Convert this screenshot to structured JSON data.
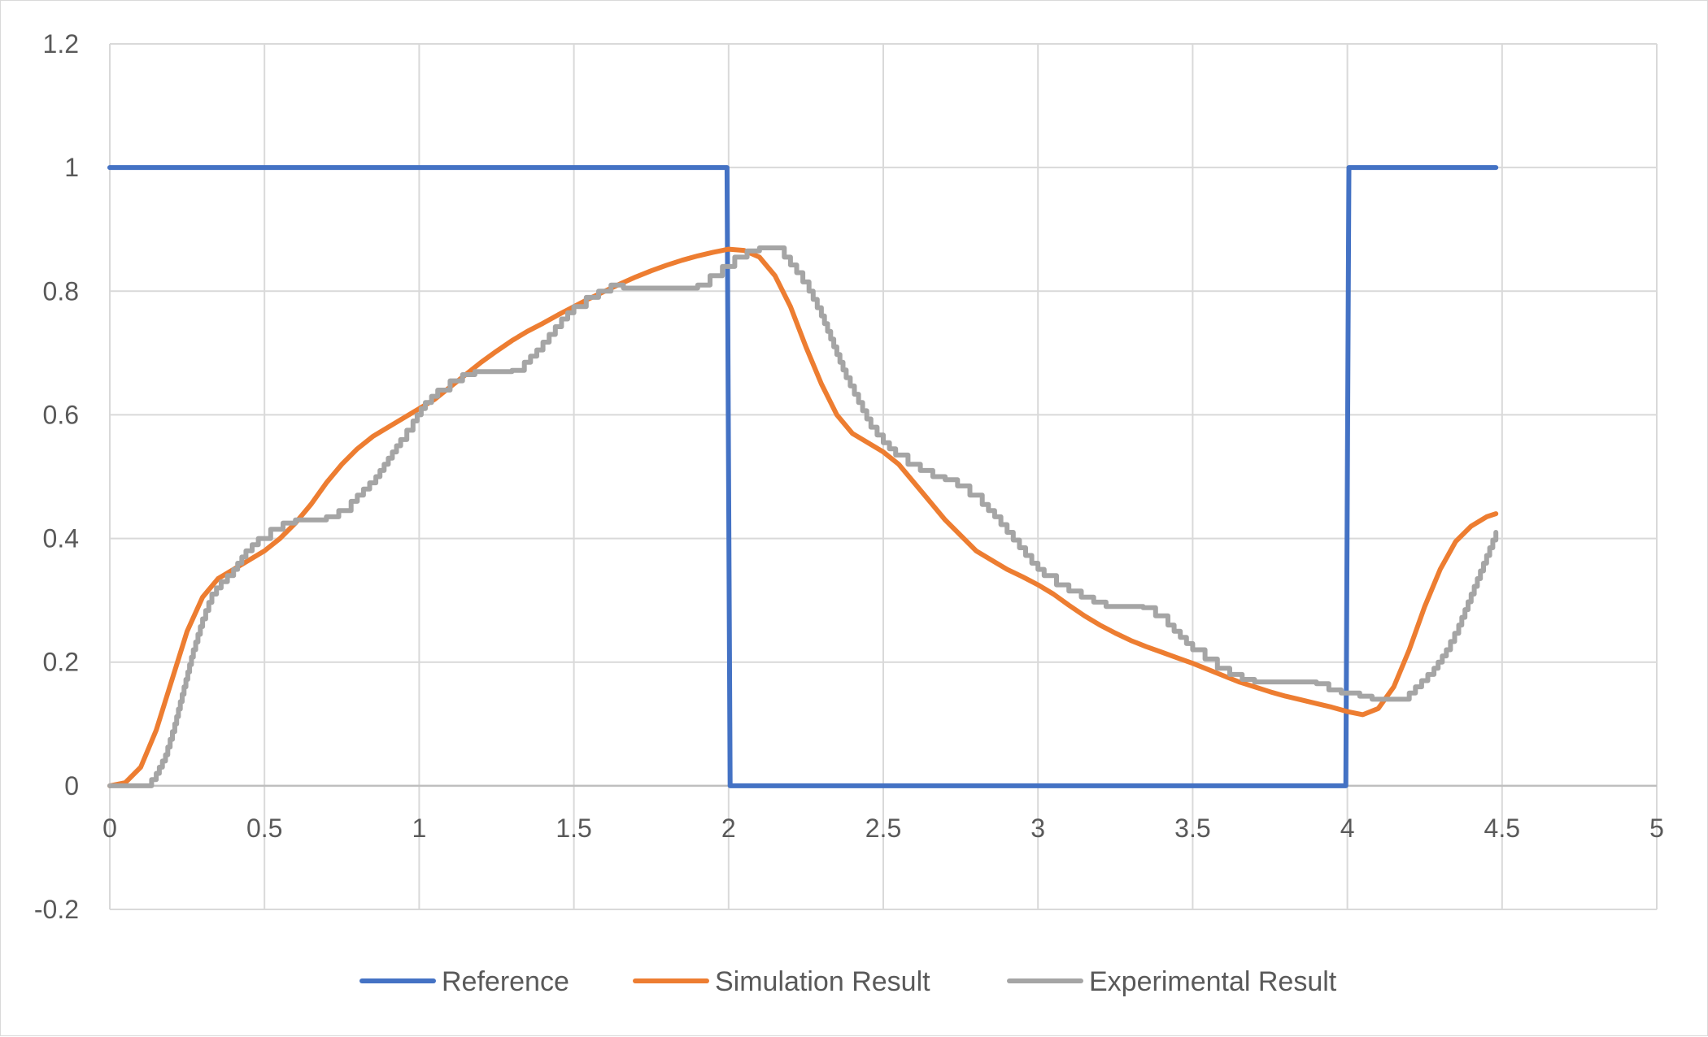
{
  "chart_data": {
    "type": "line",
    "title": "",
    "xlabel": "",
    "ylabel": "",
    "xlim": [
      0,
      5
    ],
    "ylim": [
      -0.2,
      1.2
    ],
    "x_ticks": [
      "0",
      "0.5",
      "1",
      "1.5",
      "2",
      "2.5",
      "3",
      "3.5",
      "4",
      "4.5",
      "5"
    ],
    "y_ticks": [
      "-0.2",
      "0",
      "0.2",
      "0.4",
      "0.6",
      "0.8",
      "1",
      "1.2"
    ],
    "grid": true,
    "legend_position": "bottom",
    "series": [
      {
        "name": "Reference",
        "color": "#4472C4",
        "points": [
          [
            0,
            1
          ],
          [
            1.995,
            1
          ],
          [
            2.005,
            0
          ],
          [
            3.995,
            0
          ],
          [
            4.005,
            1
          ],
          [
            4.48,
            1
          ]
        ]
      },
      {
        "name": "Simulation Result",
        "color": "#ED7D31",
        "points": [
          [
            0,
            0
          ],
          [
            0.05,
            0.005
          ],
          [
            0.1,
            0.03
          ],
          [
            0.15,
            0.09
          ],
          [
            0.2,
            0.17
          ],
          [
            0.25,
            0.25
          ],
          [
            0.3,
            0.305
          ],
          [
            0.35,
            0.335
          ],
          [
            0.4,
            0.35
          ],
          [
            0.45,
            0.365
          ],
          [
            0.5,
            0.38
          ],
          [
            0.55,
            0.4
          ],
          [
            0.6,
            0.425
          ],
          [
            0.65,
            0.455
          ],
          [
            0.7,
            0.49
          ],
          [
            0.75,
            0.52
          ],
          [
            0.8,
            0.545
          ],
          [
            0.85,
            0.565
          ],
          [
            0.9,
            0.58
          ],
          [
            0.95,
            0.595
          ],
          [
            1.0,
            0.61
          ],
          [
            1.05,
            0.625
          ],
          [
            1.1,
            0.645
          ],
          [
            1.15,
            0.665
          ],
          [
            1.2,
            0.685
          ],
          [
            1.25,
            0.703
          ],
          [
            1.3,
            0.72
          ],
          [
            1.35,
            0.735
          ],
          [
            1.4,
            0.748
          ],
          [
            1.45,
            0.762
          ],
          [
            1.5,
            0.775
          ],
          [
            1.55,
            0.788
          ],
          [
            1.6,
            0.8
          ],
          [
            1.65,
            0.812
          ],
          [
            1.7,
            0.823
          ],
          [
            1.75,
            0.833
          ],
          [
            1.8,
            0.842
          ],
          [
            1.85,
            0.85
          ],
          [
            1.9,
            0.857
          ],
          [
            1.95,
            0.863
          ],
          [
            2.0,
            0.868
          ],
          [
            2.05,
            0.866
          ],
          [
            2.1,
            0.855
          ],
          [
            2.15,
            0.825
          ],
          [
            2.2,
            0.775
          ],
          [
            2.25,
            0.71
          ],
          [
            2.3,
            0.65
          ],
          [
            2.35,
            0.6
          ],
          [
            2.4,
            0.57
          ],
          [
            2.45,
            0.555
          ],
          [
            2.5,
            0.54
          ],
          [
            2.55,
            0.52
          ],
          [
            2.6,
            0.49
          ],
          [
            2.65,
            0.46
          ],
          [
            2.7,
            0.43
          ],
          [
            2.75,
            0.405
          ],
          [
            2.8,
            0.38
          ],
          [
            2.85,
            0.365
          ],
          [
            2.9,
            0.35
          ],
          [
            2.95,
            0.338
          ],
          [
            3.0,
            0.325
          ],
          [
            3.05,
            0.31
          ],
          [
            3.1,
            0.292
          ],
          [
            3.15,
            0.275
          ],
          [
            3.2,
            0.26
          ],
          [
            3.25,
            0.247
          ],
          [
            3.3,
            0.235
          ],
          [
            3.35,
            0.225
          ],
          [
            3.4,
            0.216
          ],
          [
            3.45,
            0.207
          ],
          [
            3.5,
            0.198
          ],
          [
            3.55,
            0.188
          ],
          [
            3.6,
            0.178
          ],
          [
            3.65,
            0.168
          ],
          [
            3.7,
            0.16
          ],
          [
            3.75,
            0.152
          ],
          [
            3.8,
            0.145
          ],
          [
            3.85,
            0.139
          ],
          [
            3.9,
            0.133
          ],
          [
            3.95,
            0.127
          ],
          [
            4.0,
            0.12
          ],
          [
            4.05,
            0.115
          ],
          [
            4.1,
            0.125
          ],
          [
            4.15,
            0.16
          ],
          [
            4.2,
            0.22
          ],
          [
            4.25,
            0.29
          ],
          [
            4.3,
            0.35
          ],
          [
            4.35,
            0.395
          ],
          [
            4.4,
            0.42
          ],
          [
            4.45,
            0.435
          ],
          [
            4.48,
            0.44
          ]
        ]
      },
      {
        "name": "Experimental Result",
        "color": "#A5A5A5",
        "step": true,
        "points": [
          [
            0,
            0
          ],
          [
            0.12,
            0.0
          ],
          [
            0.15,
            0.02
          ],
          [
            0.18,
            0.05
          ],
          [
            0.21,
            0.1
          ],
          [
            0.24,
            0.16
          ],
          [
            0.27,
            0.22
          ],
          [
            0.3,
            0.27
          ],
          [
            0.33,
            0.31
          ],
          [
            0.36,
            0.33
          ],
          [
            0.4,
            0.35
          ],
          [
            0.44,
            0.38
          ],
          [
            0.48,
            0.4
          ],
          [
            0.52,
            0.415
          ],
          [
            0.56,
            0.425
          ],
          [
            0.6,
            0.43
          ],
          [
            0.7,
            0.435
          ],
          [
            0.74,
            0.445
          ],
          [
            0.78,
            0.46
          ],
          [
            0.82,
            0.48
          ],
          [
            0.86,
            0.5
          ],
          [
            0.9,
            0.53
          ],
          [
            0.94,
            0.56
          ],
          [
            0.98,
            0.59
          ],
          [
            1.02,
            0.62
          ],
          [
            1.06,
            0.64
          ],
          [
            1.1,
            0.655
          ],
          [
            1.14,
            0.665
          ],
          [
            1.18,
            0.67
          ],
          [
            1.3,
            0.672
          ],
          [
            1.34,
            0.685
          ],
          [
            1.38,
            0.705
          ],
          [
            1.42,
            0.73
          ],
          [
            1.46,
            0.755
          ],
          [
            1.5,
            0.775
          ],
          [
            1.54,
            0.79
          ],
          [
            1.58,
            0.8
          ],
          [
            1.62,
            0.81
          ],
          [
            1.66,
            0.805
          ],
          [
            1.9,
            0.81
          ],
          [
            1.94,
            0.825
          ],
          [
            1.98,
            0.84
          ],
          [
            2.02,
            0.855
          ],
          [
            2.06,
            0.865
          ],
          [
            2.1,
            0.87
          ],
          [
            2.14,
            0.87
          ],
          [
            2.18,
            0.855
          ],
          [
            2.22,
            0.83
          ],
          [
            2.26,
            0.8
          ],
          [
            2.3,
            0.76
          ],
          [
            2.34,
            0.71
          ],
          [
            2.38,
            0.66
          ],
          [
            2.42,
            0.62
          ],
          [
            2.46,
            0.58
          ],
          [
            2.5,
            0.555
          ],
          [
            2.54,
            0.535
          ],
          [
            2.58,
            0.52
          ],
          [
            2.62,
            0.51
          ],
          [
            2.66,
            0.5
          ],
          [
            2.7,
            0.495
          ],
          [
            2.74,
            0.485
          ],
          [
            2.78,
            0.47
          ],
          [
            2.82,
            0.455
          ],
          [
            2.86,
            0.435
          ],
          [
            2.9,
            0.41
          ],
          [
            2.94,
            0.385
          ],
          [
            2.98,
            0.36
          ],
          [
            3.02,
            0.34
          ],
          [
            3.06,
            0.325
          ],
          [
            3.1,
            0.315
          ],
          [
            3.14,
            0.305
          ],
          [
            3.18,
            0.297
          ],
          [
            3.22,
            0.29
          ],
          [
            3.34,
            0.288
          ],
          [
            3.38,
            0.275
          ],
          [
            3.42,
            0.26
          ],
          [
            3.46,
            0.24
          ],
          [
            3.5,
            0.22
          ],
          [
            3.54,
            0.205
          ],
          [
            3.58,
            0.19
          ],
          [
            3.62,
            0.18
          ],
          [
            3.66,
            0.172
          ],
          [
            3.7,
            0.168
          ],
          [
            3.9,
            0.165
          ],
          [
            3.94,
            0.155
          ],
          [
            3.98,
            0.15
          ],
          [
            4.04,
            0.145
          ],
          [
            4.08,
            0.14
          ],
          [
            4.16,
            0.14
          ],
          [
            4.2,
            0.15
          ],
          [
            4.24,
            0.17
          ],
          [
            4.28,
            0.19
          ],
          [
            4.32,
            0.22
          ],
          [
            4.36,
            0.26
          ],
          [
            4.4,
            0.31
          ],
          [
            4.44,
            0.36
          ],
          [
            4.48,
            0.41
          ]
        ]
      }
    ]
  }
}
